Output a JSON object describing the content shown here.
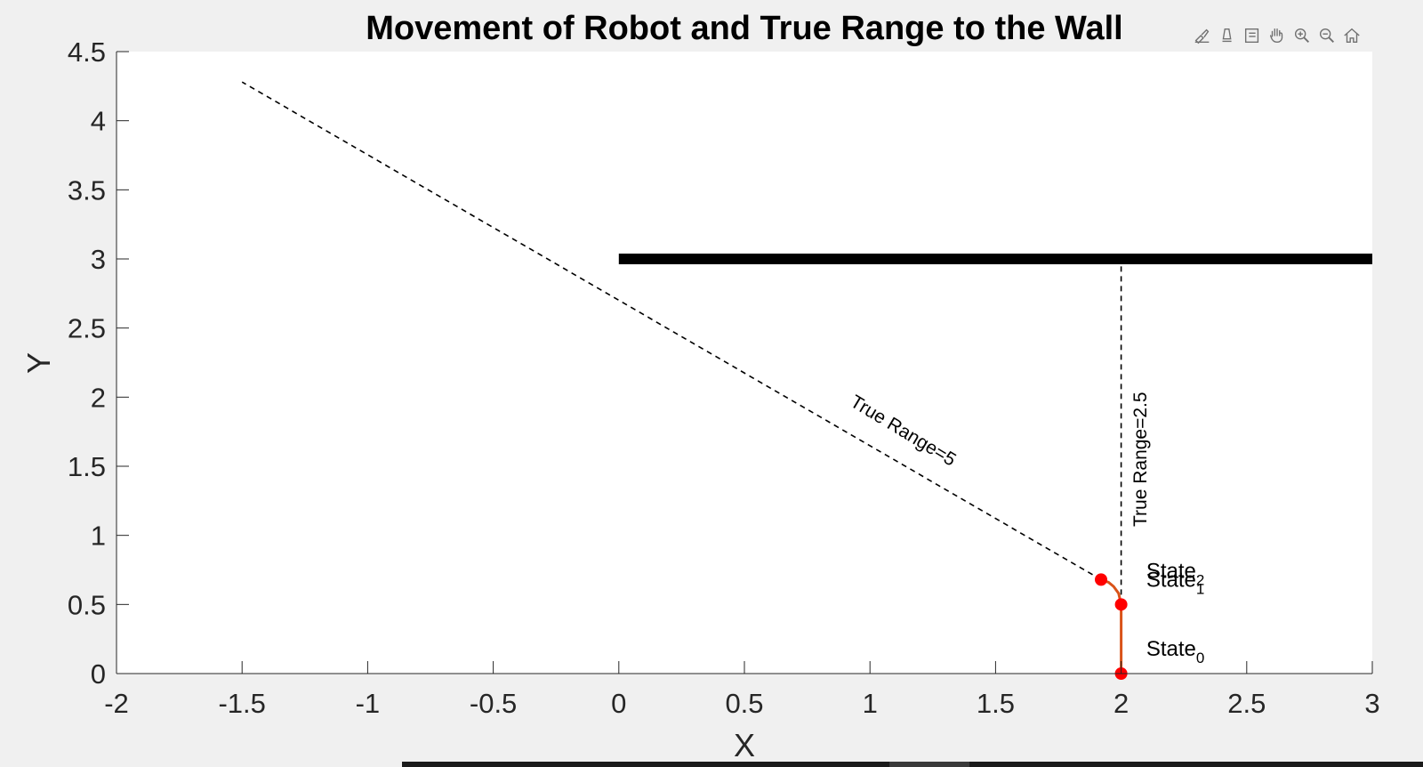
{
  "toolbar": {
    "items": [
      {
        "name": "brush-icon"
      },
      {
        "name": "datatip-icon"
      },
      {
        "name": "legend-icon"
      },
      {
        "name": "pan-hand-icon"
      },
      {
        "name": "zoom-in-icon"
      },
      {
        "name": "zoom-out-icon"
      },
      {
        "name": "home-icon"
      }
    ],
    "icon_color": "#707070"
  },
  "chart_data": {
    "type": "line",
    "title": "Movement of Robot and True Range to the Wall",
    "xlabel": "X",
    "ylabel": "Y",
    "xlim": [
      -2,
      3
    ],
    "ylim": [
      0,
      4.5
    ],
    "xticks": [
      -2,
      -1.5,
      -1,
      -0.5,
      0,
      0.5,
      1,
      1.5,
      2,
      2.5,
      3
    ],
    "yticks": [
      0,
      0.5,
      1,
      1.5,
      2,
      2.5,
      3,
      3.5,
      4,
      4.5
    ],
    "xtick_labels": [
      "-2",
      "-1.5",
      "-1",
      "-0.5",
      "0",
      "0.5",
      "1",
      "1.5",
      "2",
      "2.5",
      "3"
    ],
    "ytick_labels": [
      "0",
      "0.5",
      "1",
      "1.5",
      "2",
      "2.5",
      "3",
      "3.5",
      "4",
      "4.5"
    ],
    "grid": false,
    "wall": {
      "x": [
        0,
        3
      ],
      "y": [
        3,
        3
      ],
      "color": "#000000"
    },
    "robot_path": {
      "x": [
        2,
        2,
        1.99,
        1.97,
        1.95,
        1.92
      ],
      "y": [
        0,
        0.5,
        0.58,
        0.63,
        0.66,
        0.68
      ],
      "color": "#d95319"
    },
    "states": [
      {
        "x": 2,
        "y": 0,
        "base": "State",
        "sub": "0",
        "color": "#ff0000"
      },
      {
        "x": 2,
        "y": 0.5,
        "base": "State",
        "sub": "1",
        "color": "#ff0000"
      },
      {
        "x": 1.92,
        "y": 0.68,
        "base": "State",
        "sub": "2",
        "color": "#ff0000"
      }
    ],
    "range_lines": [
      {
        "x": [
          2,
          2
        ],
        "y": [
          0.5,
          3
        ],
        "label": "True Range=2.5",
        "label_x": 2.1,
        "label_y": 1.55,
        "rotation": -90
      },
      {
        "x": [
          1.92,
          -1.5
        ],
        "y": [
          0.68,
          4.28
        ],
        "label": "True Range=5",
        "label_x": 1.12,
        "label_y": 1.72,
        "rotation": 31
      }
    ]
  }
}
